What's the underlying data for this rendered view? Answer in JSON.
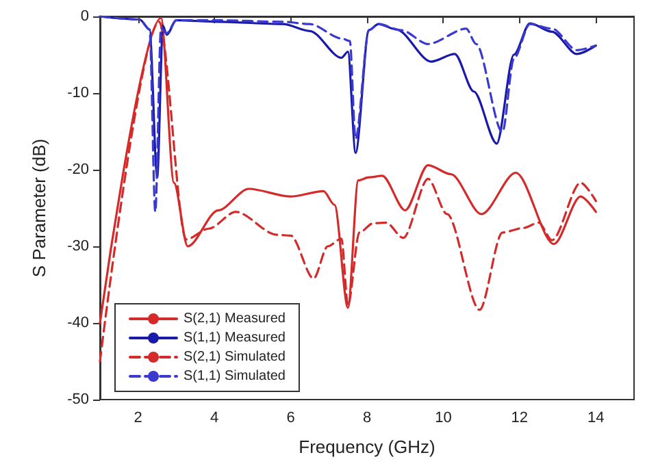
{
  "chart_data": {
    "type": "line",
    "xlabel": "Frequency (GHz)",
    "ylabel": "S Parameter (dB)",
    "xlim": [
      1,
      15
    ],
    "xticks": [
      2,
      4,
      6,
      8,
      10,
      12,
      14
    ],
    "ylim": [
      -50,
      0
    ],
    "yticks": [
      -50,
      -40,
      -30,
      -20,
      -10,
      0
    ],
    "grid": false,
    "legend": "bottom left",
    "marker": "none",
    "series": [
      {
        "name": "S(2,1) Measured",
        "color": "#d42a2a",
        "line_style": "solid",
        "x": [
          1,
          2.6,
          2.94,
          3.3,
          4.1,
          4.9,
          6.0,
          6.86,
          7.15,
          7.5,
          7.77,
          8.05,
          8.4,
          9.0,
          9.6,
          10.2,
          11.0,
          11.9,
          12.9,
          13.6,
          14.0
        ],
        "values": [
          -40,
          -0.2,
          -21.7,
          -30,
          -25.3,
          -22.5,
          -23.5,
          -22.8,
          -24.6,
          -38,
          -21.4,
          -21,
          -20.8,
          -25.3,
          -19.4,
          -20.6,
          -25.8,
          -20.4,
          -29.7,
          -23.5,
          -25.5
        ]
      },
      {
        "name": "S(1,1) Measured",
        "color": "#1a1aaa",
        "line_style": "solid",
        "x": [
          1,
          2.04,
          2.3,
          2.5,
          2.65,
          2.75,
          3.0,
          4.1,
          5.8,
          6.5,
          7.33,
          7.5,
          7.7,
          8.05,
          8.3,
          8.77,
          9.68,
          10.3,
          10.8,
          11.4,
          11.85,
          12.27,
          12.85,
          13.5,
          14.0
        ],
        "values": [
          0,
          -0.4,
          -1.7,
          -21,
          -1.2,
          -2.4,
          -0.5,
          -0.7,
          -1,
          -1.9,
          -5.4,
          -4.6,
          -17.8,
          -1.8,
          -1,
          -1.7,
          -5.9,
          -4.9,
          -9.8,
          -16.6,
          -5,
          -0.9,
          -2,
          -4.9,
          -3.8
        ]
      },
      {
        "name": "S(2,1) Simulated",
        "color": "#d42a2a",
        "line_style": "dashed",
        "x": [
          1,
          2.55,
          3.26,
          3.85,
          4.56,
          5.64,
          6.0,
          6.6,
          6.97,
          7.33,
          7.5,
          7.8,
          8.16,
          8.5,
          8.95,
          9.6,
          10.1,
          10.95,
          11.55,
          12.1,
          12.5,
          12.85,
          13.6,
          14.0
        ],
        "values": [
          -45,
          -0.7,
          -29.1,
          -27.7,
          -25.5,
          -28.5,
          -28.6,
          -34.2,
          -30,
          -29,
          -37.7,
          -28.2,
          -27,
          -26.9,
          -28.9,
          -21.2,
          -25.8,
          -38.3,
          -28.2,
          -27.6,
          -26.9,
          -29.2,
          -21.7,
          -24.1
        ]
      },
      {
        "name": "S(1,1) Simulated",
        "color": "#3a3ad0",
        "line_style": "dashed",
        "x": [
          1,
          2.04,
          2.3,
          2.45,
          2.6,
          2.75,
          3.0,
          4.1,
          5.8,
          6.5,
          7.35,
          7.55,
          7.7,
          8.05,
          8.3,
          8.9,
          9.6,
          10.6,
          10.86,
          11.55,
          11.85,
          12.27,
          12.85,
          13.5,
          14.0
        ],
        "values": [
          0,
          -0.4,
          -1.7,
          -25.5,
          -1.5,
          -2.2,
          -0.5,
          -0.5,
          -0.7,
          -1,
          -2.9,
          -3.2,
          -16,
          -1.8,
          -1,
          -1.8,
          -3.6,
          -1.6,
          -3.6,
          -15.1,
          -5.5,
          -1,
          -1.6,
          -4.4,
          -3.8
        ]
      }
    ]
  }
}
